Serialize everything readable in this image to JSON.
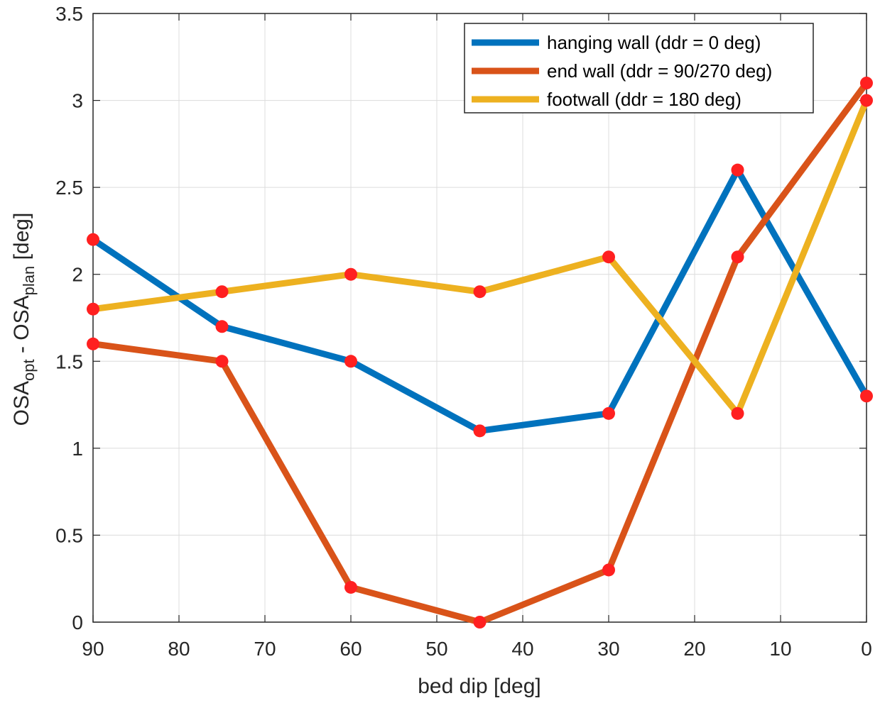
{
  "chart_data": {
    "type": "line",
    "x": [
      90,
      75,
      60,
      45,
      30,
      15,
      0
    ],
    "xlim": [
      90,
      0
    ],
    "ylim": [
      0,
      3.5
    ],
    "xticks": [
      "90",
      "80",
      "70",
      "60",
      "50",
      "40",
      "30",
      "20",
      "10",
      "0"
    ],
    "yticks": [
      "0",
      "0.5",
      "1",
      "1.5",
      "2",
      "2.5",
      "3",
      "3.5"
    ],
    "x_reversed": true,
    "grid": true,
    "legend_position": "top-right",
    "xlabel": "bed dip [deg]",
    "ylabel": {
      "p1": "OSA",
      "sub1": "opt",
      "p2": " - OSA",
      "sub2": "plan",
      "p3": " [deg]"
    },
    "marker_color": "#ff2020",
    "series": [
      {
        "name": "hanging wall (ddr = 0 deg)",
        "color": "#0072bd",
        "values": [
          2.2,
          1.7,
          1.5,
          1.1,
          1.2,
          2.6,
          1.3
        ]
      },
      {
        "name": "end wall (ddr = 90/270 deg)",
        "color": "#d95319",
        "values": [
          1.6,
          1.5,
          0.2,
          0.0,
          0.3,
          2.1,
          3.1
        ]
      },
      {
        "name": "footwall (ddr = 180 deg)",
        "color": "#edb120",
        "values": [
          1.8,
          1.9,
          2.0,
          1.9,
          2.1,
          1.2,
          3.0
        ]
      }
    ]
  }
}
